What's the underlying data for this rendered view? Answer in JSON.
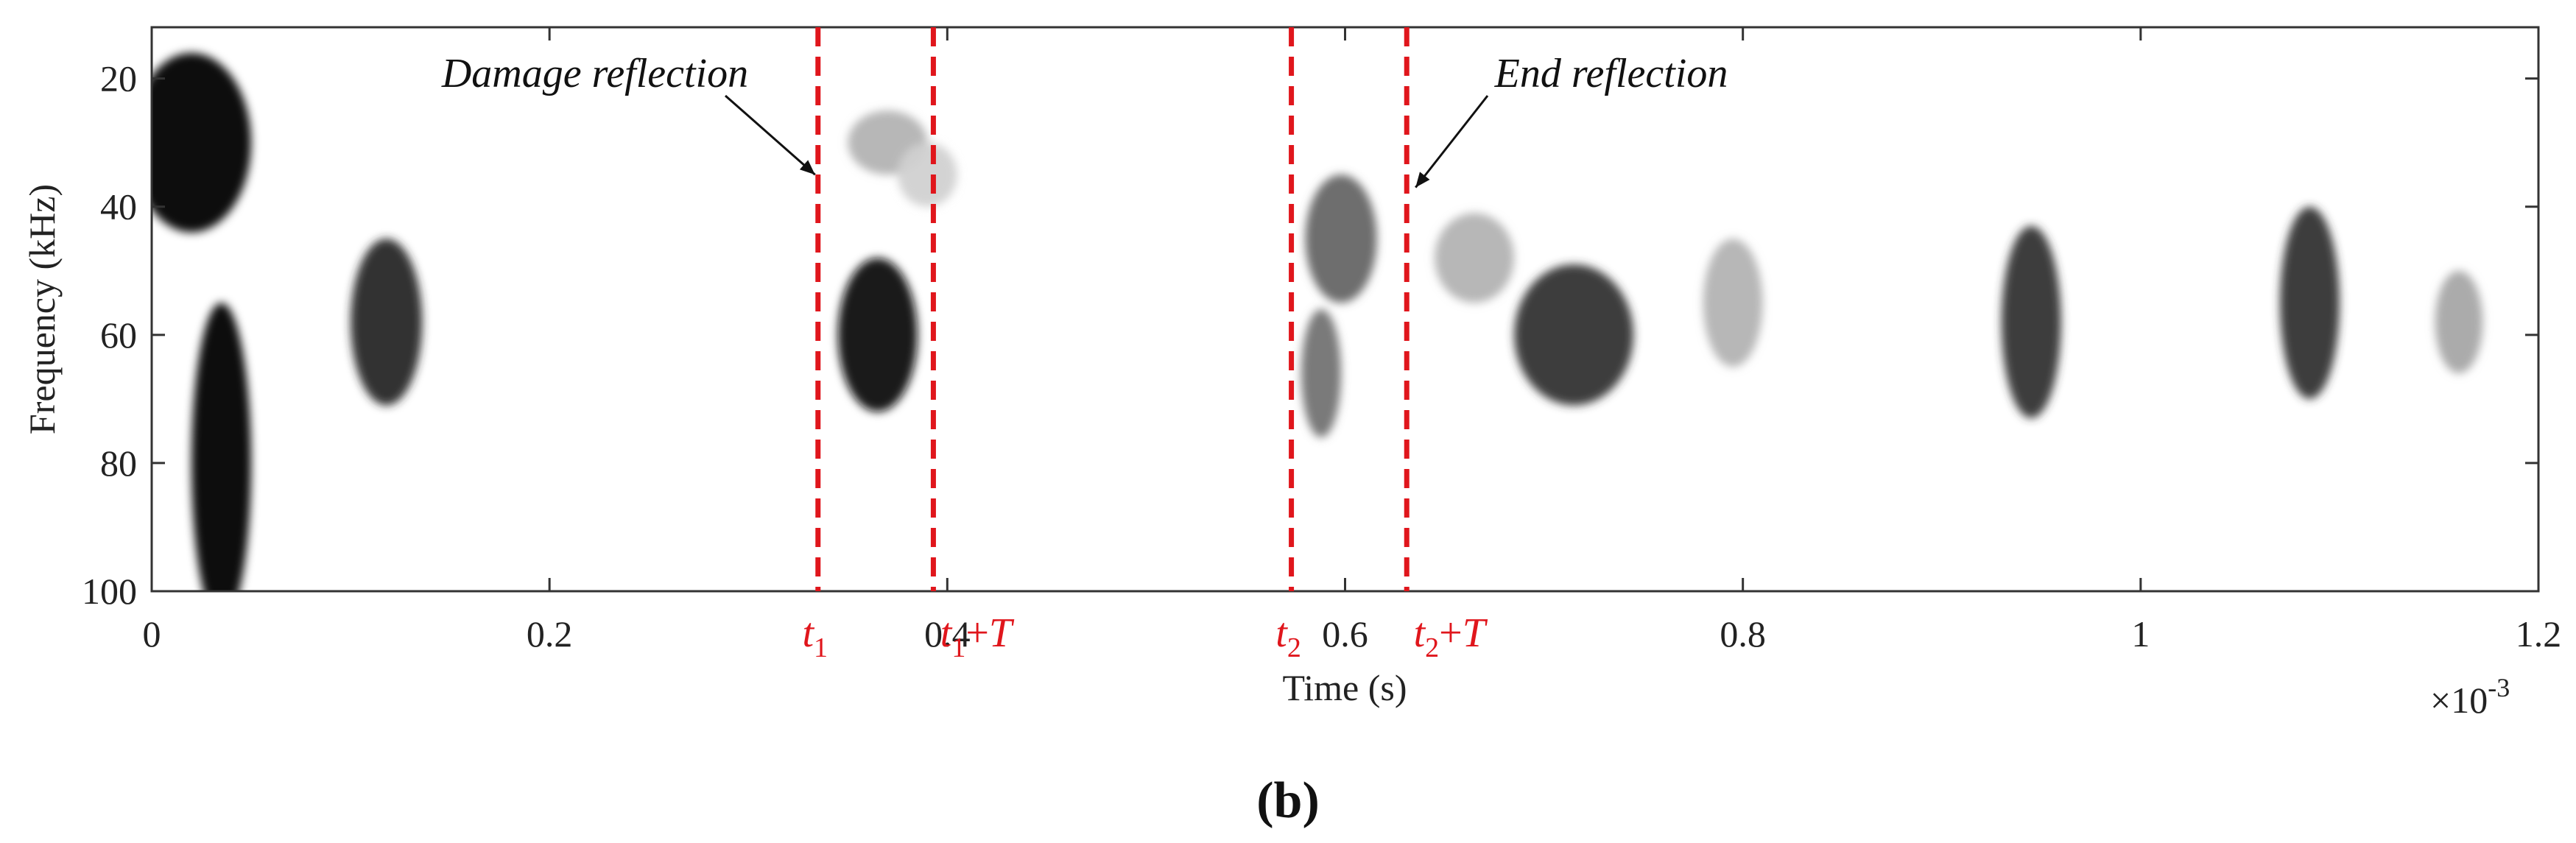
{
  "chart_data": {
    "type": "heatmap",
    "colormap": "white-to-black (grayscale)",
    "title": "",
    "xlabel": "Time (s)",
    "ylabel": "Frequency (kHz)",
    "x_multiplier": "×10",
    "x_multiplier_exp": "-3",
    "xlim": [
      0,
      1.2
    ],
    "ylim": [
      12,
      100
    ],
    "y_reversed": true,
    "xticks": [
      {
        "value": 0,
        "label": "0"
      },
      {
        "value": 0.2,
        "label": "0.2"
      },
      {
        "value": 0.4,
        "label": "0.4"
      },
      {
        "value": 0.6,
        "label": "0.6"
      },
      {
        "value": 0.8,
        "label": "0.8"
      },
      {
        "value": 1.0,
        "label": "1"
      },
      {
        "value": 1.2,
        "label": "1.2"
      }
    ],
    "yticks": [
      {
        "value": 20,
        "label": "20"
      },
      {
        "value": 40,
        "label": "40"
      },
      {
        "value": 60,
        "label": "60"
      },
      {
        "value": 80,
        "label": "80"
      },
      {
        "value": 100,
        "label": "100"
      }
    ],
    "energy_blobs": [
      {
        "t": 0.02,
        "f": 30,
        "st": 0.03,
        "sf": 14,
        "intensity": 1.0
      },
      {
        "t": 0.035,
        "f": 80,
        "st": 0.015,
        "sf": 25,
        "intensity": 1.0
      },
      {
        "t": 0.118,
        "f": 58,
        "st": 0.018,
        "sf": 13,
        "intensity": 0.85
      },
      {
        "t": 0.365,
        "f": 60,
        "st": 0.02,
        "sf": 12,
        "intensity": 0.95
      },
      {
        "t": 0.37,
        "f": 30,
        "st": 0.02,
        "sf": 5,
        "intensity": 0.3
      },
      {
        "t": 0.39,
        "f": 35,
        "st": 0.015,
        "sf": 5,
        "intensity": 0.18
      },
      {
        "t": 0.598,
        "f": 45,
        "st": 0.018,
        "sf": 10,
        "intensity": 0.6
      },
      {
        "t": 0.588,
        "f": 66,
        "st": 0.01,
        "sf": 10,
        "intensity": 0.55
      },
      {
        "t": 0.715,
        "f": 60,
        "st": 0.03,
        "sf": 11,
        "intensity": 0.8
      },
      {
        "t": 0.665,
        "f": 48,
        "st": 0.02,
        "sf": 7,
        "intensity": 0.3
      },
      {
        "t": 0.795,
        "f": 55,
        "st": 0.015,
        "sf": 10,
        "intensity": 0.3
      },
      {
        "t": 0.945,
        "f": 58,
        "st": 0.015,
        "sf": 15,
        "intensity": 0.8
      },
      {
        "t": 1.085,
        "f": 55,
        "st": 0.015,
        "sf": 15,
        "intensity": 0.8
      },
      {
        "t": 1.16,
        "f": 58,
        "st": 0.012,
        "sf": 8,
        "intensity": 0.35
      }
    ],
    "markers": [
      {
        "t": 0.335,
        "label": "t",
        "sub": "1",
        "suffix": ""
      },
      {
        "t": 0.393,
        "label": "t",
        "sub": "1",
        "suffix": "+T"
      },
      {
        "t": 0.573,
        "label": "t",
        "sub": "2",
        "suffix": ""
      },
      {
        "t": 0.631,
        "label": "t",
        "sub": "2",
        "suffix": "+T"
      }
    ],
    "marker_color": "#e0161c",
    "annotations": [
      {
        "text": "Damage reflection",
        "target_t": 0.335,
        "target_f": 35
      },
      {
        "text": "End reflection",
        "target_t": 0.631,
        "target_f": 37
      }
    ]
  },
  "caption": "(b)"
}
